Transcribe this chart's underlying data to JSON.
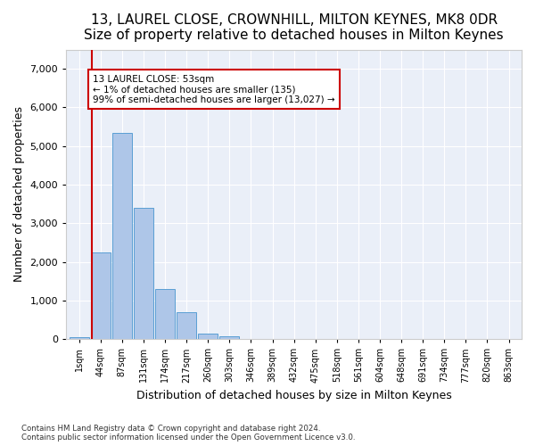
{
  "title1": "13, LAUREL CLOSE, CROWNHILL, MILTON KEYNES, MK8 0DR",
  "title2": "Size of property relative to detached houses in Milton Keynes",
  "xlabel": "Distribution of detached houses by size in Milton Keynes",
  "ylabel": "Number of detached properties",
  "footnote": "Contains HM Land Registry data © Crown copyright and database right 2024.\nContains public sector information licensed under the Open Government Licence v3.0.",
  "bin_labels": [
    "1sqm",
    "44sqm",
    "87sqm",
    "131sqm",
    "174sqm",
    "217sqm",
    "260sqm",
    "303sqm",
    "346sqm",
    "389sqm",
    "432sqm",
    "475sqm",
    "518sqm",
    "561sqm",
    "604sqm",
    "648sqm",
    "691sqm",
    "734sqm",
    "777sqm",
    "820sqm",
    "863sqm"
  ],
  "bar_values": [
    50,
    2250,
    5350,
    3400,
    1300,
    700,
    150,
    75,
    0,
    0,
    0,
    0,
    0,
    0,
    0,
    0,
    0,
    0,
    0,
    0,
    0
  ],
  "bar_color": "#aec6e8",
  "bar_edge_color": "#5a9fd4",
  "vline_x": 0.58,
  "vline_color": "#cc0000",
  "annotation_text": "13 LAUREL CLOSE: 53sqm\n← 1% of detached houses are smaller (135)\n99% of semi-detached houses are larger (13,027) →",
  "annotation_box_color": "#ffffff",
  "annotation_box_edge": "#cc0000",
  "ylim": [
    0,
    7500
  ],
  "yticks": [
    0,
    1000,
    2000,
    3000,
    4000,
    5000,
    6000,
    7000
  ],
  "plot_bg": "#eaeff8",
  "title1_fontsize": 11,
  "xlabel_fontsize": 9,
  "ylabel_fontsize": 9
}
